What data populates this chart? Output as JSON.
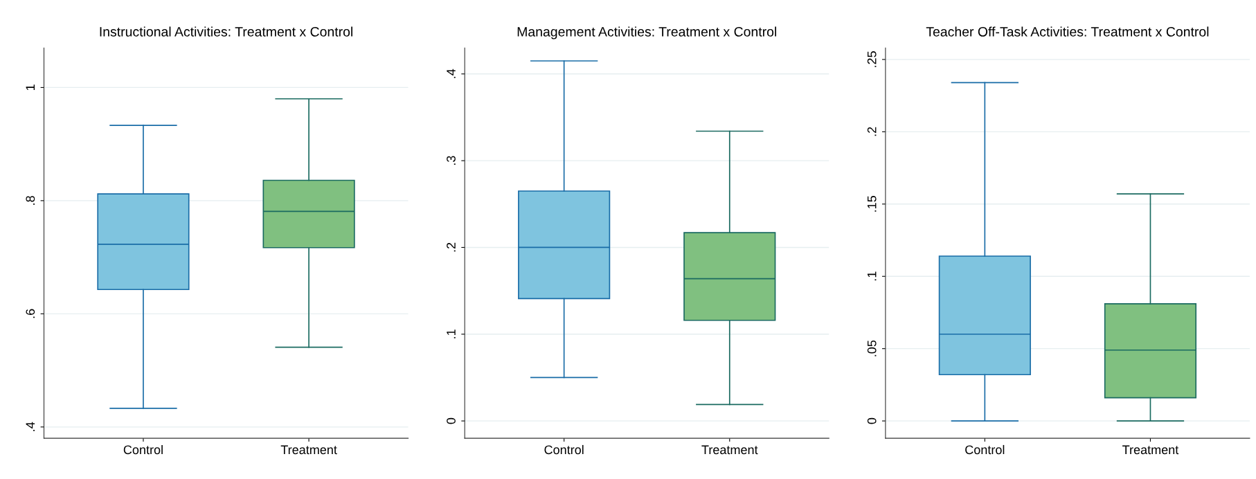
{
  "chart_data": [
    {
      "type": "box",
      "title": "Instructional Activities: Treatment x Control",
      "categories": [
        "Control",
        "Treatment"
      ],
      "colors": [
        "#7fc4df",
        "#80c080"
      ],
      "boxes": [
        {
          "low": 0.433,
          "q1": 0.643,
          "median": 0.723,
          "q3": 0.812,
          "high": 0.933
        },
        {
          "low": 0.541,
          "q1": 0.717,
          "median": 0.781,
          "q3": 0.836,
          "high": 0.98
        }
      ],
      "ylim": [
        0.38,
        1.07
      ],
      "yticks": [
        {
          "value": 0.4,
          "label": ".4"
        },
        {
          "value": 0.6,
          "label": ".6"
        },
        {
          "value": 0.8,
          "label": ".8"
        },
        {
          "value": 1,
          "label": "1"
        }
      ],
      "grid": "y"
    },
    {
      "type": "box",
      "title": "Management Activities: Treatment x Control",
      "categories": [
        "Control",
        "Treatment"
      ],
      "colors": [
        "#7fc4df",
        "#80c080"
      ],
      "boxes": [
        {
          "low": 0.05,
          "q1": 0.141,
          "median": 0.2,
          "q3": 0.265,
          "high": 0.415
        },
        {
          "low": 0.019,
          "q1": 0.116,
          "median": 0.164,
          "q3": 0.217,
          "high": 0.334
        }
      ],
      "ylim": [
        -0.02,
        0.43
      ],
      "yticks": [
        {
          "value": 0,
          "label": "0"
        },
        {
          "value": 0.1,
          "label": ".1"
        },
        {
          "value": 0.2,
          "label": ".2"
        },
        {
          "value": 0.3,
          "label": ".3"
        },
        {
          "value": 0.4,
          "label": ".4"
        }
      ],
      "grid": "y"
    },
    {
      "type": "box",
      "title": "Teacher Off-Task Activities: Treatment x Control",
      "categories": [
        "Control",
        "Treatment"
      ],
      "colors": [
        "#7fc4df",
        "#80c080"
      ],
      "boxes": [
        {
          "low": 0,
          "q1": 0.032,
          "median": 0.06,
          "q3": 0.114,
          "high": 0.234
        },
        {
          "low": 0,
          "q1": 0.016,
          "median": 0.049,
          "q3": 0.081,
          "high": 0.157
        }
      ],
      "ylim": [
        -0.012,
        0.258
      ],
      "yticks": [
        {
          "value": 0,
          "label": "0"
        },
        {
          "value": 0.05,
          "label": ".05"
        },
        {
          "value": 0.1,
          "label": ".1"
        },
        {
          "value": 0.15,
          "label": ".15"
        },
        {
          "value": 0.2,
          "label": ".2"
        },
        {
          "value": 0.25,
          "label": ".25"
        }
      ],
      "grid": "y"
    }
  ]
}
